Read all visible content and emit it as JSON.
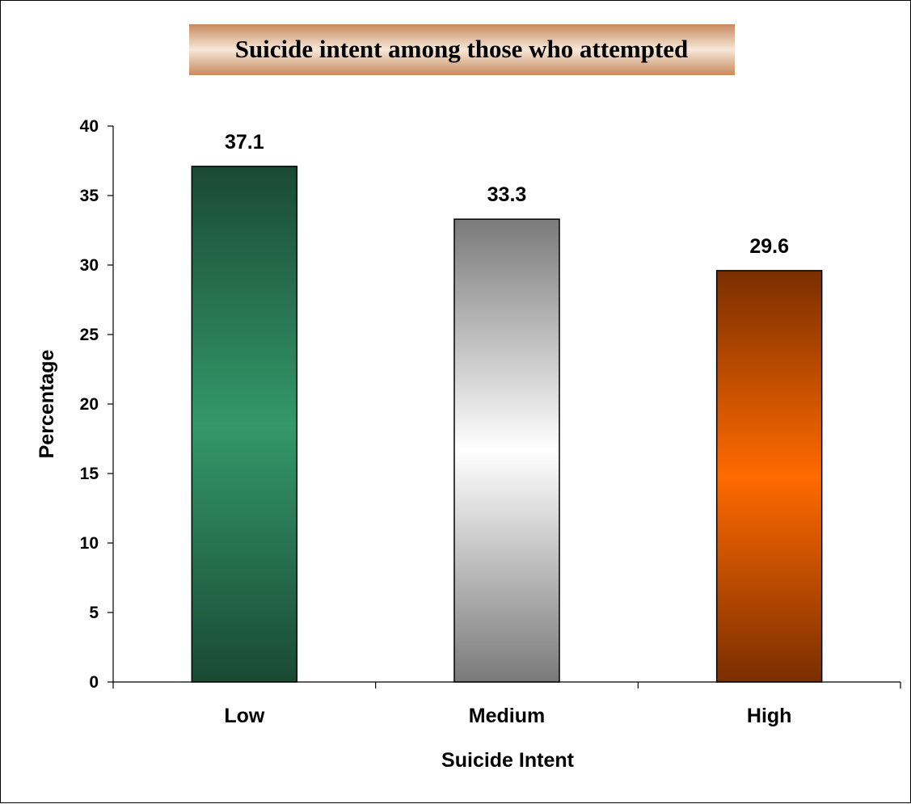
{
  "chart_data": {
    "type": "bar",
    "title": "Suicide intent among those who attempted",
    "xlabel": "Suicide Intent",
    "ylabel": "Percentage",
    "categories": [
      "Low",
      "Medium",
      "High"
    ],
    "values": [
      37.1,
      33.3,
      29.6
    ],
    "data_labels": [
      "37.1",
      "33.3",
      "29.6"
    ],
    "ylim": [
      0,
      40
    ],
    "yticks": [
      0,
      5,
      10,
      15,
      20,
      25,
      30,
      35,
      40
    ],
    "ytick_labels": [
      "0",
      "5",
      "10",
      "15",
      "20",
      "25",
      "30",
      "35",
      "40"
    ],
    "grid": false,
    "legend": false,
    "bar_colors": [
      {
        "edge": "#1a4a32",
        "center": "#33986a"
      },
      {
        "edge": "#7a7a7a",
        "center": "#ffffff"
      },
      {
        "edge": "#7a2e00",
        "center": "#ff6a00"
      }
    ],
    "title_background": {
      "edge": "#c68a5e",
      "center": "#f7e8d8"
    }
  }
}
